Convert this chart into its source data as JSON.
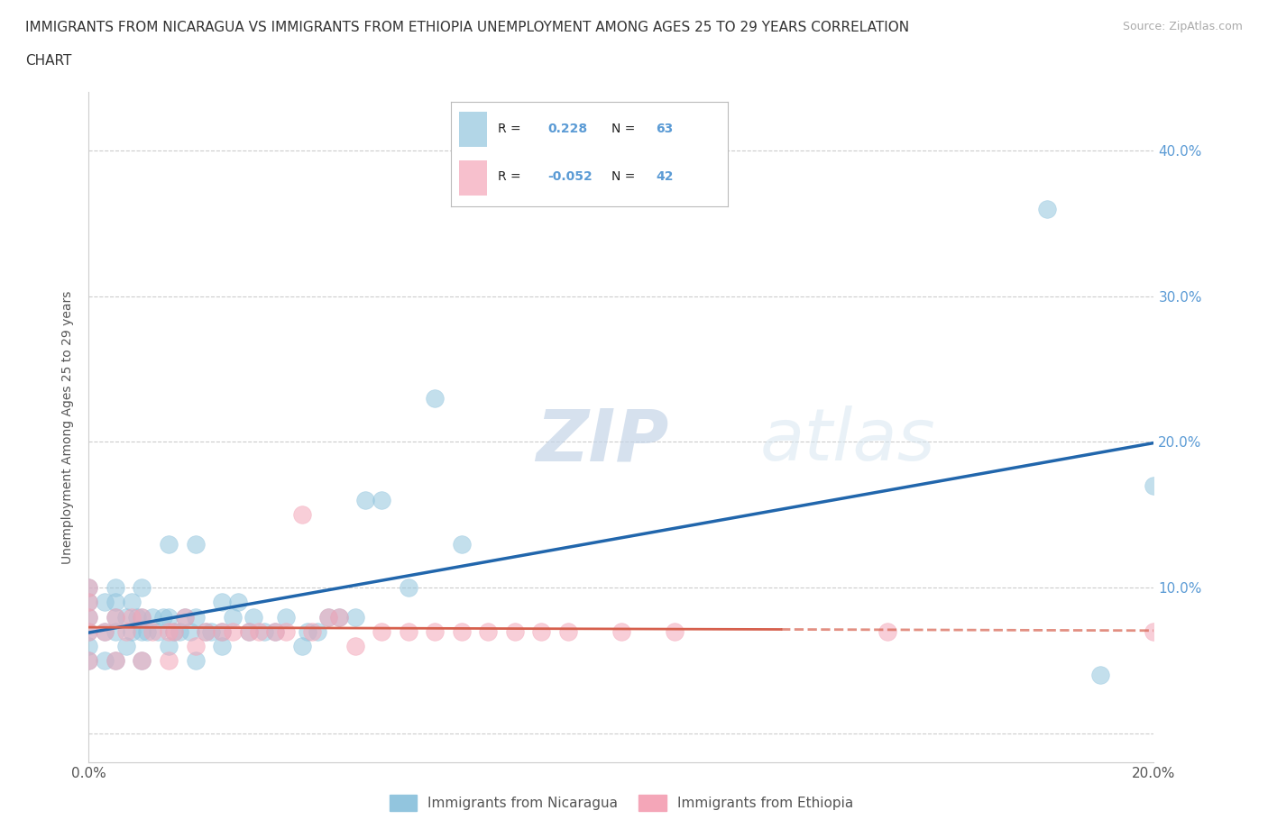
{
  "title_line1": "IMMIGRANTS FROM NICARAGUA VS IMMIGRANTS FROM ETHIOPIA UNEMPLOYMENT AMONG AGES 25 TO 29 YEARS CORRELATION",
  "title_line2": "CHART",
  "source_text": "Source: ZipAtlas.com",
  "ylabel": "Unemployment Among Ages 25 to 29 years",
  "xlim": [
    0.0,
    0.2
  ],
  "ylim": [
    -0.02,
    0.44
  ],
  "yticks": [
    0.0,
    0.1,
    0.2,
    0.3,
    0.4
  ],
  "xticks": [
    0.0,
    0.05,
    0.1,
    0.15,
    0.2
  ],
  "xtick_labels": [
    "0.0%",
    "",
    "",
    "",
    "20.0%"
  ],
  "ytick_labels_right": [
    "",
    "10.0%",
    "20.0%",
    "30.0%",
    "40.0%"
  ],
  "nicaragua_color": "#92c5de",
  "ethiopia_color": "#f4a6b8",
  "nicaragua_R": 0.228,
  "nicaragua_N": 63,
  "ethiopia_R": -0.052,
  "ethiopia_N": 42,
  "nicaragua_line_color": "#2166ac",
  "ethiopia_line_color": "#d6604d",
  "watermark_zip": "ZIP",
  "watermark_atlas": "atlas",
  "legend_label_nicaragua": "Immigrants from Nicaragua",
  "legend_label_ethiopia": "Immigrants from Ethiopia",
  "nicaragua_x": [
    0.0,
    0.0,
    0.0,
    0.0,
    0.0,
    0.0,
    0.003,
    0.003,
    0.003,
    0.005,
    0.005,
    0.005,
    0.005,
    0.005,
    0.007,
    0.007,
    0.008,
    0.008,
    0.009,
    0.01,
    0.01,
    0.01,
    0.01,
    0.011,
    0.012,
    0.013,
    0.014,
    0.015,
    0.015,
    0.015,
    0.016,
    0.017,
    0.018,
    0.019,
    0.02,
    0.02,
    0.02,
    0.022,
    0.023,
    0.025,
    0.025,
    0.025,
    0.027,
    0.028,
    0.03,
    0.031,
    0.033,
    0.035,
    0.037,
    0.04,
    0.041,
    0.043,
    0.045,
    0.047,
    0.05,
    0.052,
    0.055,
    0.06,
    0.065,
    0.07,
    0.18,
    0.19,
    0.2
  ],
  "nicaragua_y": [
    0.05,
    0.06,
    0.07,
    0.08,
    0.09,
    0.1,
    0.05,
    0.07,
    0.09,
    0.05,
    0.07,
    0.08,
    0.09,
    0.1,
    0.06,
    0.08,
    0.07,
    0.09,
    0.08,
    0.05,
    0.07,
    0.08,
    0.1,
    0.07,
    0.08,
    0.07,
    0.08,
    0.06,
    0.08,
    0.13,
    0.07,
    0.07,
    0.08,
    0.07,
    0.05,
    0.08,
    0.13,
    0.07,
    0.07,
    0.06,
    0.07,
    0.09,
    0.08,
    0.09,
    0.07,
    0.08,
    0.07,
    0.07,
    0.08,
    0.06,
    0.07,
    0.07,
    0.08,
    0.08,
    0.08,
    0.16,
    0.16,
    0.1,
    0.23,
    0.13,
    0.36,
    0.04,
    0.17
  ],
  "ethiopia_x": [
    0.0,
    0.0,
    0.0,
    0.0,
    0.0,
    0.003,
    0.005,
    0.005,
    0.007,
    0.008,
    0.01,
    0.01,
    0.012,
    0.015,
    0.015,
    0.016,
    0.018,
    0.02,
    0.022,
    0.025,
    0.027,
    0.03,
    0.032,
    0.035,
    0.037,
    0.04,
    0.042,
    0.045,
    0.047,
    0.05,
    0.055,
    0.06,
    0.065,
    0.07,
    0.075,
    0.08,
    0.085,
    0.09,
    0.1,
    0.11,
    0.15,
    0.2
  ],
  "ethiopia_y": [
    0.05,
    0.07,
    0.08,
    0.09,
    0.1,
    0.07,
    0.05,
    0.08,
    0.07,
    0.08,
    0.05,
    0.08,
    0.07,
    0.05,
    0.07,
    0.07,
    0.08,
    0.06,
    0.07,
    0.07,
    0.07,
    0.07,
    0.07,
    0.07,
    0.07,
    0.15,
    0.07,
    0.08,
    0.08,
    0.06,
    0.07,
    0.07,
    0.07,
    0.07,
    0.07,
    0.07,
    0.07,
    0.07,
    0.07,
    0.07,
    0.07,
    0.07
  ],
  "background_color": "#ffffff",
  "grid_color": "#cccccc",
  "tick_color": "#5b9bd5"
}
